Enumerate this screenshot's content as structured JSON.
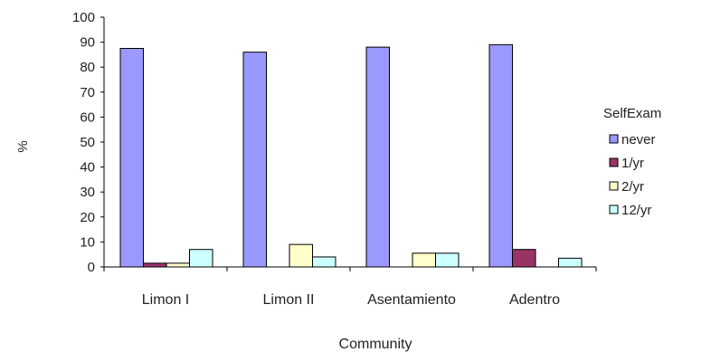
{
  "chart_data": {
    "type": "bar",
    "title": "",
    "xlabel": "Community",
    "ylabel": "%",
    "ylim": [
      0,
      100
    ],
    "yticks": [
      0,
      10,
      20,
      30,
      40,
      50,
      60,
      70,
      80,
      90,
      100
    ],
    "grid": false,
    "legend_position": "right",
    "legend_title": "SelfExam",
    "categories": [
      "Limon I",
      "Limon II",
      "Asentamiento",
      "Adentro"
    ],
    "series": [
      {
        "name": "never",
        "color": "#9999ff",
        "values": [
          87.5,
          86,
          88,
          89
        ]
      },
      {
        "name": "1/yr",
        "color": "#993366",
        "values": [
          1.5,
          0,
          0,
          7
        ]
      },
      {
        "name": "2/yr",
        "color": "#ffffcc",
        "values": [
          1.5,
          9,
          5.5,
          0
        ]
      },
      {
        "name": "12/yr",
        "color": "#ccffff",
        "values": [
          7,
          4,
          5.5,
          3.5
        ]
      }
    ]
  }
}
